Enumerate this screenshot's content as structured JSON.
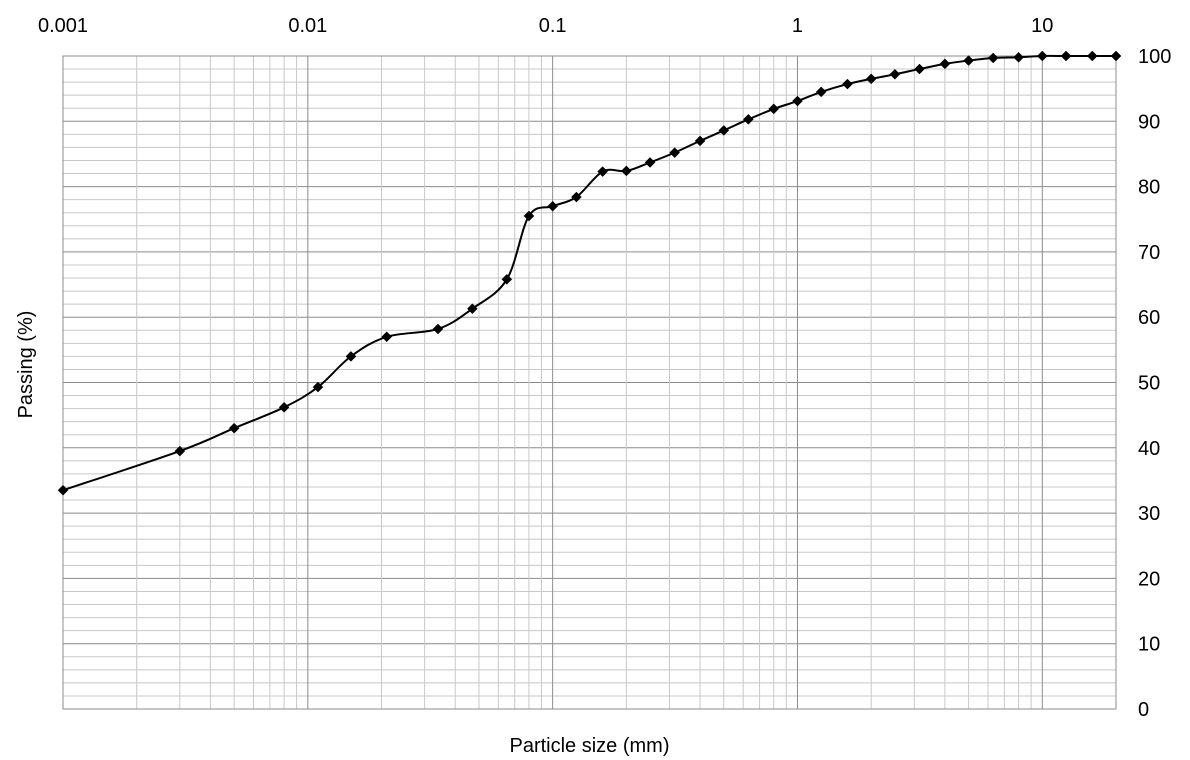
{
  "chart_data": {
    "type": "line",
    "title": "",
    "xlabel": "Particle size (mm)",
    "ylabel": "Passing (%)",
    "x_scale": "log",
    "x_axis_position": "top",
    "y_axis_position": "right",
    "xlim": [
      0.001,
      20
    ],
    "ylim": [
      0,
      100
    ],
    "x_ticks": [
      "0.001",
      "0.01",
      "0.1",
      "1",
      "10"
    ],
    "y_ticks": [
      "0",
      "10",
      "20",
      "30",
      "40",
      "50",
      "60",
      "70",
      "80",
      "90",
      "100"
    ],
    "grid": true,
    "legend": "none",
    "line_color": "#000000",
    "marker": "diamond",
    "series": [
      {
        "x": [
          0.001,
          0.003,
          0.005,
          0.008,
          0.011,
          0.015,
          0.021,
          0.034,
          0.047,
          0.065,
          0.08,
          0.1,
          0.125,
          0.16,
          0.2,
          0.25,
          0.315,
          0.4,
          0.5,
          0.63,
          0.8,
          1.0,
          1.25,
          1.6,
          2.0,
          2.5,
          3.15,
          4.0,
          5.0,
          6.3,
          8.0,
          10.0,
          12.5,
          16.0,
          20.0
        ],
        "y": [
          33.5,
          39.5,
          43.0,
          46.2,
          49.3,
          54.0,
          57.0,
          58.2,
          61.3,
          65.8,
          75.5,
          77.0,
          78.4,
          82.3,
          82.4,
          83.7,
          85.2,
          87.0,
          88.6,
          90.3,
          91.9,
          93.1,
          94.5,
          95.7,
          96.5,
          97.2,
          98.0,
          98.8,
          99.3,
          99.7,
          99.8,
          100.0,
          100.0,
          100.0,
          100.0
        ]
      }
    ]
  }
}
